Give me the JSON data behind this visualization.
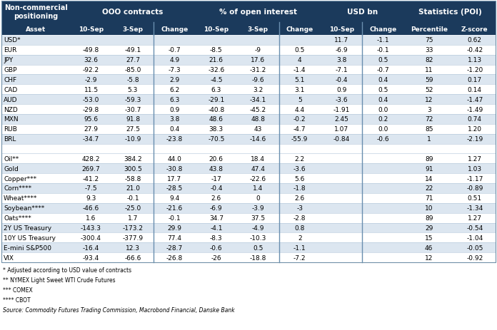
{
  "title_header": "Non-commercial\npositioning",
  "group_headers": [
    "OOO contracts",
    "% of open interest",
    "USD bn",
    "Statistics (POI)"
  ],
  "col_headers": [
    "Asset",
    "10-Sep",
    "3-Sep",
    "Change",
    "10-Sep",
    "3-Sep",
    "Change",
    "10-Sep",
    "Change",
    "Percentile",
    "Z-score"
  ],
  "rows": [
    [
      "USD*",
      "",
      "",
      "",
      "",
      "",
      "",
      "11.7",
      "-1.1",
      "75",
      "0.62"
    ],
    [
      "EUR",
      "-49.8",
      "-49.1",
      "-0.7",
      "-8.5",
      "-9",
      "0.5",
      "-6.9",
      "-0.1",
      "33",
      "-0.42"
    ],
    [
      "JPY",
      "32.6",
      "27.7",
      "4.9",
      "21.6",
      "17.6",
      "4",
      "3.8",
      "0.5",
      "82",
      "1.13"
    ],
    [
      "GBP",
      "-92.2",
      "-85.0",
      "-7.3",
      "-32.6",
      "-31.2",
      "-1.4",
      "-7.1",
      "-0.7",
      "11",
      "-1.20"
    ],
    [
      "CHF",
      "-2.9",
      "-5.8",
      "2.9",
      "-4.5",
      "-9.6",
      "5.1",
      "-0.4",
      "0.4",
      "59",
      "0.17"
    ],
    [
      "CAD",
      "11.5",
      "5.3",
      "6.2",
      "6.3",
      "3.2",
      "3.1",
      "0.9",
      "0.5",
      "52",
      "0.14"
    ],
    [
      "AUD",
      "-53.0",
      "-59.3",
      "6.3",
      "-29.1",
      "-34.1",
      "5",
      "-3.6",
      "0.4",
      "12",
      "-1.47"
    ],
    [
      "NZD",
      "-29.8",
      "-30.7",
      "0.9",
      "-40.8",
      "-45.2",
      "4.4",
      "-1.91",
      "0.0",
      "3",
      "-1.49"
    ],
    [
      "MXN",
      "95.6",
      "91.8",
      "3.8",
      "48.6",
      "48.8",
      "-0.2",
      "2.45",
      "0.2",
      "72",
      "0.74"
    ],
    [
      "RUB",
      "27.9",
      "27.5",
      "0.4",
      "38.3",
      "43",
      "-4.7",
      "1.07",
      "0.0",
      "85",
      "1.20"
    ],
    [
      "BRL",
      "-34.7",
      "-10.9",
      "-23.8",
      "-70.5",
      "-14.6",
      "-55.9",
      "-0.84",
      "-0.6",
      "1",
      "-2.19"
    ],
    [
      "",
      "",
      "",
      "",
      "",
      "",
      "",
      "",
      "",
      "",
      ""
    ],
    [
      "Oil**",
      "428.2",
      "384.2",
      "44.0",
      "20.6",
      "18.4",
      "2.2",
      "",
      "",
      "89",
      "1.27"
    ],
    [
      "Gold",
      "269.7",
      "300.5",
      "-30.8",
      "43.8",
      "47.4",
      "-3.6",
      "",
      "",
      "91",
      "1.03"
    ],
    [
      "Copper***",
      "-41.2",
      "-58.8",
      "17.7",
      "-17",
      "-22.6",
      "5.6",
      "",
      "",
      "14",
      "-1.17"
    ],
    [
      "Corn****",
      "-7.5",
      "21.0",
      "-28.5",
      "-0.4",
      "1.4",
      "-1.8",
      "",
      "",
      "22",
      "-0.89"
    ],
    [
      "Wheat****",
      "9.3",
      "-0.1",
      "9.4",
      "2.6",
      "0",
      "2.6",
      "",
      "",
      "71",
      "0.51"
    ],
    [
      "Soybean****",
      "-46.6",
      "-25.0",
      "-21.6",
      "-6.9",
      "-3.9",
      "-3",
      "",
      "",
      "10",
      "-1.34"
    ],
    [
      "Oats****",
      "1.6",
      "1.7",
      "-0.1",
      "34.7",
      "37.5",
      "-2.8",
      "",
      "",
      "89",
      "1.27"
    ],
    [
      "2Y US Treasury",
      "-143.3",
      "-173.2",
      "29.9",
      "-4.1",
      "-4.9",
      "0.8",
      "",
      "",
      "29",
      "-0.54"
    ],
    [
      "10Y US Treasury",
      "-300.4",
      "-377.9",
      "77.4",
      "-8.3",
      "-10.3",
      "2",
      "",
      "",
      "15",
      "-1.04"
    ],
    [
      "E-mini S&P500",
      "-16.4",
      "12.3",
      "-28.7",
      "-0.6",
      "0.5",
      "-1.1",
      "",
      "",
      "46",
      "-0.05"
    ],
    [
      "VIX",
      "-93.4",
      "-66.6",
      "-26.8",
      "-26",
      "-18.8",
      "-7.2",
      "",
      "",
      "12",
      "-0.92"
    ]
  ],
  "footnotes": [
    "* Adjusted according to USD value of contracts",
    "** NYMEX Light Sweet WTI Crude Futures",
    "*** COMEX",
    "**** CBOT",
    "Source: Commodity Futures Trading Commission, Macrobond Financial, Danske Bank"
  ],
  "header_bg": "#1b3a5c",
  "header_fg": "#ffffff",
  "row_bg_light": "#dce6f0",
  "row_bg_white": "#ffffff",
  "separator_row_idx": 11,
  "divider_after_cols": [
    3,
    6,
    8
  ],
  "col_widths_rel": [
    1.45,
    0.88,
    0.88,
    0.88,
    0.88,
    0.88,
    0.88,
    0.88,
    0.88,
    1.05,
    0.88
  ],
  "font_size_header_group": 7.5,
  "font_size_header_col": 6.5,
  "font_size_data": 6.5,
  "font_size_footnote": 5.5
}
